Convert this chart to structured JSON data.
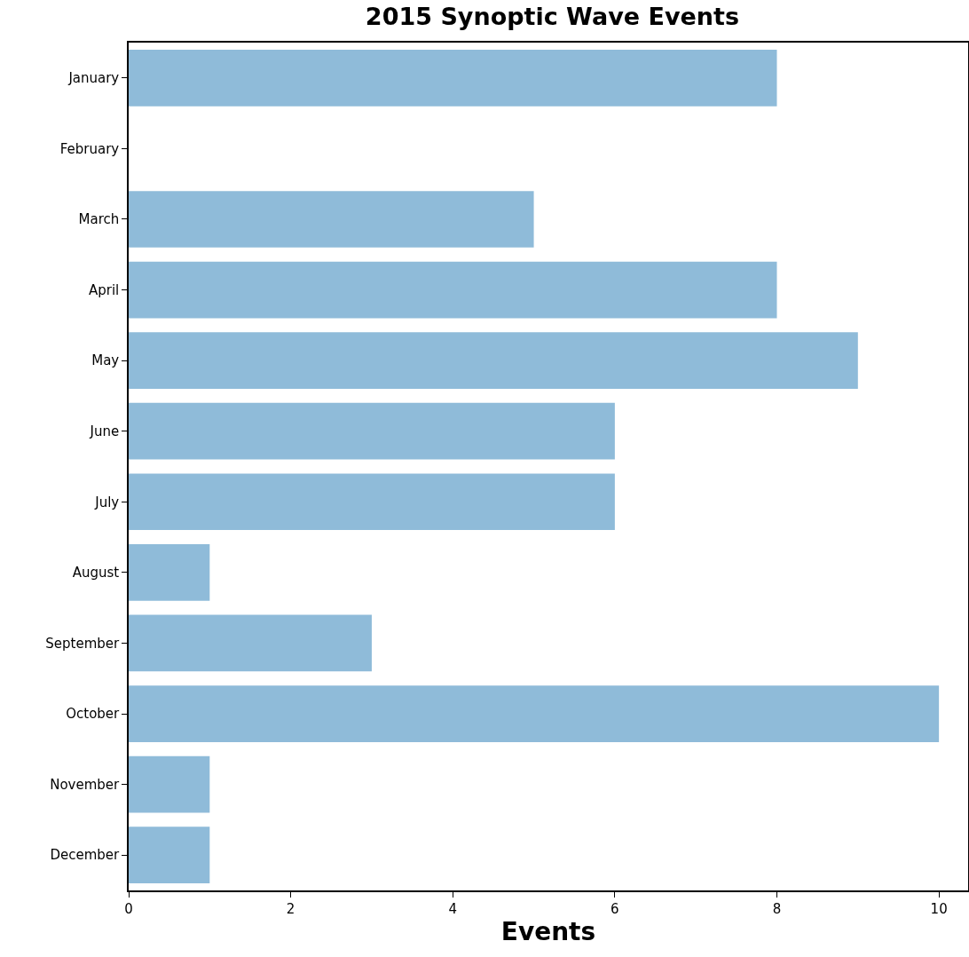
{
  "chart_data": {
    "type": "bar",
    "orientation": "horizontal",
    "title": "2015 Synoptic Wave Events",
    "xlabel": "Events",
    "categories": [
      "January",
      "February",
      "March",
      "April",
      "May",
      "June",
      "July",
      "August",
      "September",
      "October",
      "November",
      "December"
    ],
    "values": [
      8,
      0,
      5,
      8,
      9,
      6,
      6,
      1,
      3,
      10,
      1,
      1
    ],
    "color": "#8fbbd9",
    "xlim": [
      0,
      10.36
    ],
    "xticks": [
      0,
      2,
      4,
      6,
      8,
      10
    ],
    "grid": false
  }
}
